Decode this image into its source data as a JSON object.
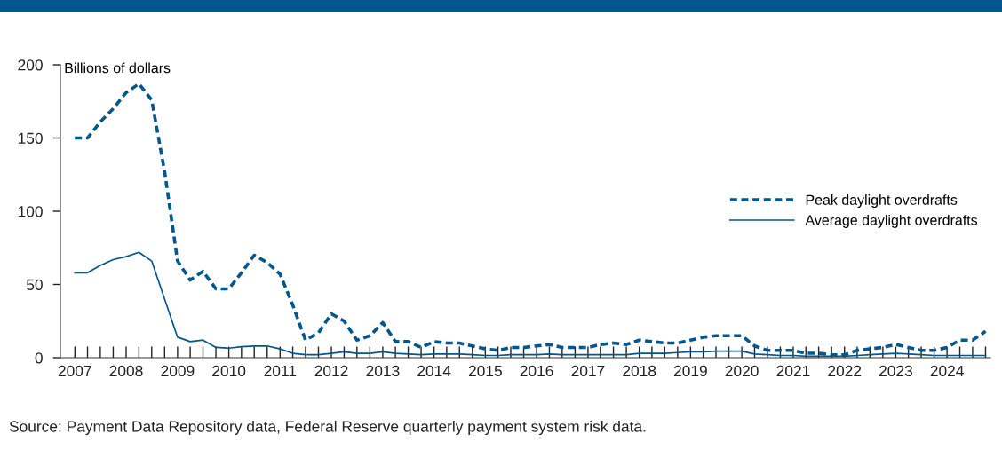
{
  "chart_data": {
    "type": "line",
    "ylabel": "Billions of dollars",
    "annotations": [
      "Source: Payment Data Repository data, Federal Reserve quarterly payment system risk data."
    ],
    "x": [
      "2007-01",
      "2007-04",
      "2007-07",
      "2007-10",
      "2008-01",
      "2008-04",
      "2008-07",
      "2008-10",
      "2009-01",
      "2009-04",
      "2009-07",
      "2009-10",
      "2010-01",
      "2010-04",
      "2010-07",
      "2010-10",
      "2011-01",
      "2011-04",
      "2011-07",
      "2011-10",
      "2012-01",
      "2012-04",
      "2012-07",
      "2012-10",
      "2013-01",
      "2013-04",
      "2013-07",
      "2013-10",
      "2014-01",
      "2014-04",
      "2014-07",
      "2014-10",
      "2015-01",
      "2015-04",
      "2015-07",
      "2015-10",
      "2016-01",
      "2016-04",
      "2016-07",
      "2016-10",
      "2017-01",
      "2017-04",
      "2017-07",
      "2017-10",
      "2018-01",
      "2018-04",
      "2018-07",
      "2018-10",
      "2019-01",
      "2019-04",
      "2019-07",
      "2019-10",
      "2020-01",
      "2020-04",
      "2020-07",
      "2020-10",
      "2021-01",
      "2021-04",
      "2021-07",
      "2021-10",
      "2022-01",
      "2022-04",
      "2022-07",
      "2022-10",
      "2023-01",
      "2023-04",
      "2023-07",
      "2023-10",
      "2024-01",
      "2024-04",
      "2024-07",
      "2024-10"
    ],
    "series": [
      {
        "name": "Peak daylight overdrafts",
        "color": "#00578e",
        "line_style": "dashed",
        "values": [
          150,
          150,
          161,
          170,
          181,
          187,
          176,
          127,
          66,
          53,
          59,
          47,
          47,
          58,
          70,
          65,
          57,
          36,
          12,
          17,
          30,
          25,
          12,
          15,
          24,
          11,
          11,
          7,
          11,
          10,
          10,
          8,
          6,
          5,
          7,
          7,
          8,
          9,
          7,
          7,
          7,
          9,
          10,
          9,
          12,
          11,
          10,
          10,
          12,
          14,
          15,
          15,
          15,
          8,
          5,
          5,
          5,
          3,
          3,
          2,
          2,
          5,
          6,
          7,
          9,
          7,
          5,
          5,
          7,
          12,
          12,
          18
        ]
      },
      {
        "name": "Average daylight overdrafts",
        "color": "#00578e",
        "line_style": "solid",
        "values": [
          58,
          58,
          63,
          67,
          69,
          72,
          66,
          40,
          14,
          11,
          12,
          7,
          6.5,
          7.5,
          8,
          8,
          6,
          3,
          2,
          2,
          3,
          4,
          3,
          3,
          4,
          3,
          2.5,
          2,
          2.5,
          2.5,
          2.5,
          2,
          1.5,
          1.5,
          2,
          2,
          2,
          2.5,
          2,
          2,
          2,
          2,
          2,
          2,
          3,
          3,
          3,
          3.5,
          4,
          4,
          4.5,
          4.5,
          4.5,
          2.5,
          2,
          1.5,
          1.5,
          1,
          1,
          1,
          1,
          1.5,
          2,
          2.5,
          3,
          2.5,
          2,
          1.5,
          1.5,
          1.5,
          1.5,
          1.5
        ]
      }
    ],
    "xlim": [
      "2006-09-20",
      "2024-11-05"
    ],
    "xticks": [
      {
        "value": "2007-01",
        "label": "2007"
      },
      {
        "value": "2007-04",
        "label": null
      },
      {
        "value": "2007-07",
        "label": null
      },
      {
        "value": "2007-10",
        "label": null
      },
      {
        "value": "2008-01",
        "label": "2008"
      },
      {
        "value": "2008-04",
        "label": null
      },
      {
        "value": "2008-07",
        "label": null
      },
      {
        "value": "2008-10",
        "label": null
      },
      {
        "value": "2009-01",
        "label": "2009"
      },
      {
        "value": "2009-04",
        "label": null
      },
      {
        "value": "2009-07",
        "label": null
      },
      {
        "value": "2009-10",
        "label": null
      },
      {
        "value": "2010-01",
        "label": "2010"
      },
      {
        "value": "2010-04",
        "label": null
      },
      {
        "value": "2010-07",
        "label": null
      },
      {
        "value": "2010-10",
        "label": null
      },
      {
        "value": "2011-01",
        "label": "2011"
      },
      {
        "value": "2011-04",
        "label": null
      },
      {
        "value": "2011-07",
        "label": null
      },
      {
        "value": "2011-10",
        "label": null
      },
      {
        "value": "2012-01",
        "label": "2012"
      },
      {
        "value": "2012-04",
        "label": null
      },
      {
        "value": "2012-07",
        "label": null
      },
      {
        "value": "2012-10",
        "label": null
      },
      {
        "value": "2013-01",
        "label": "2013"
      },
      {
        "value": "2013-04",
        "label": null
      },
      {
        "value": "2013-07",
        "label": null
      },
      {
        "value": "2013-10",
        "label": null
      },
      {
        "value": "2014-01",
        "label": "2014"
      },
      {
        "value": "2014-04",
        "label": null
      },
      {
        "value": "2014-07",
        "label": null
      },
      {
        "value": "2014-10",
        "label": null
      },
      {
        "value": "2015-01",
        "label": "2015"
      },
      {
        "value": "2015-04",
        "label": null
      },
      {
        "value": "2015-07",
        "label": null
      },
      {
        "value": "2015-10",
        "label": null
      },
      {
        "value": "2016-01",
        "label": "2016"
      },
      {
        "value": "2016-04",
        "label": null
      },
      {
        "value": "2016-07",
        "label": null
      },
      {
        "value": "2016-10",
        "label": null
      },
      {
        "value": "2017-01",
        "label": "2017"
      },
      {
        "value": "2017-04",
        "label": null
      },
      {
        "value": "2017-07",
        "label": null
      },
      {
        "value": "2017-10",
        "label": null
      },
      {
        "value": "2018-01",
        "label": "2018"
      },
      {
        "value": "2018-04",
        "label": null
      },
      {
        "value": "2018-07",
        "label": null
      },
      {
        "value": "2018-10",
        "label": null
      },
      {
        "value": "2019-01",
        "label": "2019"
      },
      {
        "value": "2019-04",
        "label": null
      },
      {
        "value": "2019-07",
        "label": null
      },
      {
        "value": "2019-10",
        "label": null
      },
      {
        "value": "2020-01",
        "label": "2020"
      },
      {
        "value": "2020-04",
        "label": null
      },
      {
        "value": "2020-07",
        "label": null
      },
      {
        "value": "2020-10",
        "label": null
      },
      {
        "value": "2021-01",
        "label": "2021"
      },
      {
        "value": "2021-04",
        "label": null
      },
      {
        "value": "2021-07",
        "label": null
      },
      {
        "value": "2021-10",
        "label": null
      },
      {
        "value": "2022-01",
        "label": "2022"
      },
      {
        "value": "2022-04",
        "label": null
      },
      {
        "value": "2022-07",
        "label": null
      },
      {
        "value": "2022-10",
        "label": null
      },
      {
        "value": "2023-01",
        "label": "2023"
      },
      {
        "value": "2023-04",
        "label": null
      },
      {
        "value": "2023-07",
        "label": null
      },
      {
        "value": "2023-10",
        "label": null
      },
      {
        "value": "2024-01",
        "label": "2024"
      },
      {
        "value": "2024-04",
        "label": null
      },
      {
        "value": "2024-07",
        "label": null
      },
      {
        "value": "2024-10",
        "label": null
      }
    ],
    "ylim": [
      0,
      200
    ],
    "yticks": [
      0,
      50,
      100,
      150,
      200
    ],
    "grid": false,
    "legend": "right",
    "marker": "none"
  }
}
